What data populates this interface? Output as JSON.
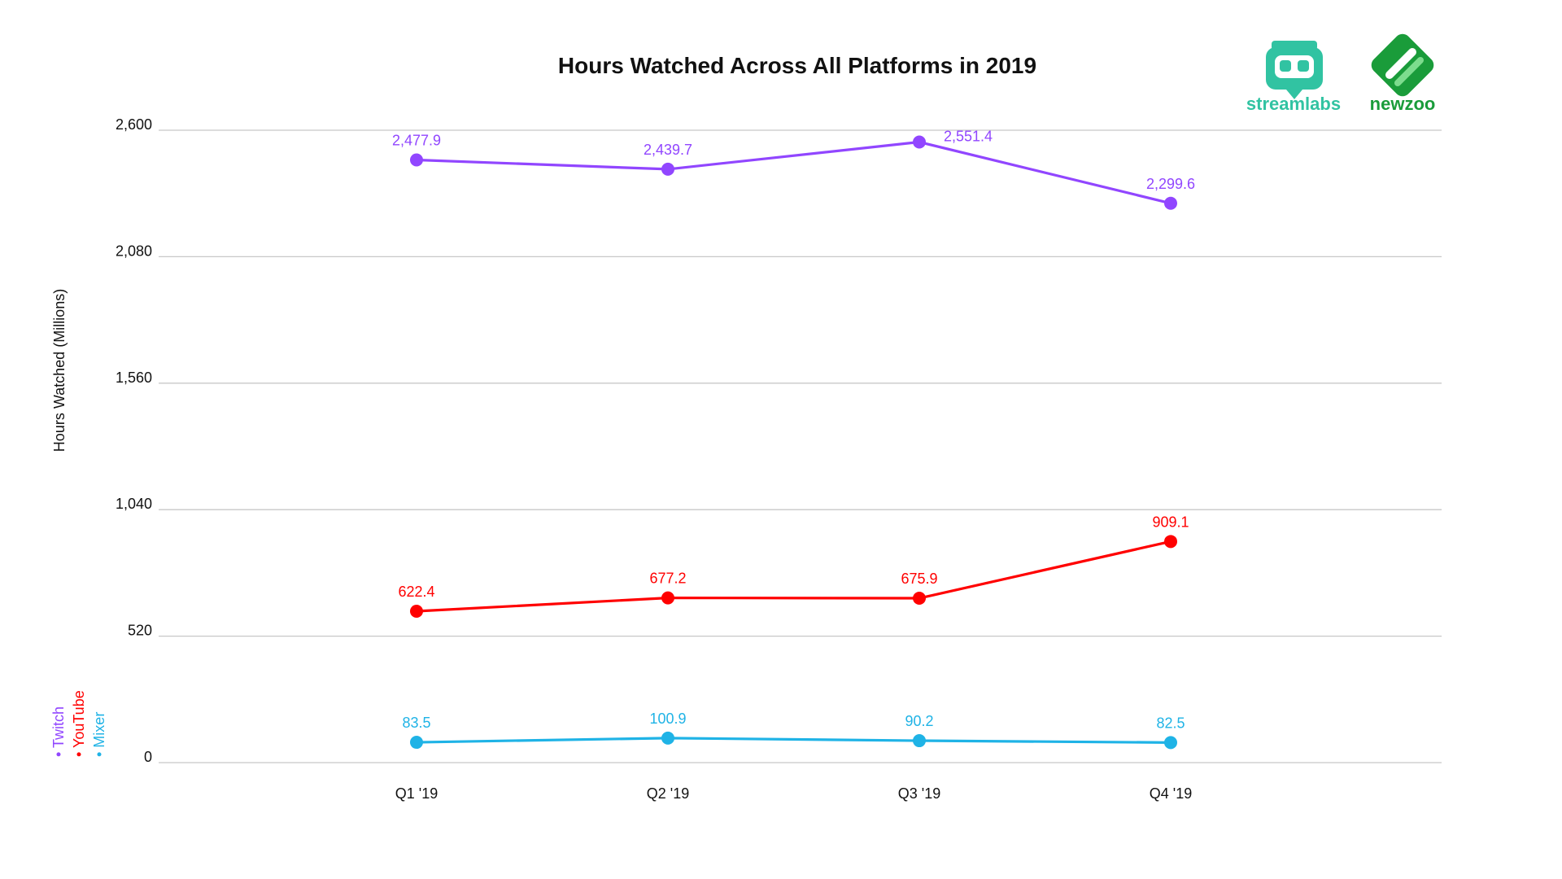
{
  "chart_data": {
    "type": "line",
    "title": "Hours Watched Across All Platforms in 2019",
    "xlabel": "",
    "ylabel": "Hours Watched (Millions)",
    "categories": [
      "Q1 '19",
      "Q2 '19",
      "Q3 '19",
      "Q4 '19"
    ],
    "ylim": [
      0,
      2600
    ],
    "yticks": [
      0,
      520,
      1040,
      1560,
      2080,
      2600
    ],
    "ytick_labels": [
      "0",
      "520",
      "1,040",
      "1,560",
      "2,080",
      "2,600"
    ],
    "grid": "horizontal",
    "legend_position": "left, rotated vertical",
    "series": [
      {
        "name": "Twitch",
        "color": "#9146ff",
        "values": [
          2477.9,
          2439.7,
          2551.4,
          2299.6
        ],
        "labels": [
          "2,477.9",
          "2,439.7",
          "2,551.4",
          "2,299.6"
        ]
      },
      {
        "name": "YouTube",
        "color": "#ff0000",
        "values": [
          622.4,
          677.2,
          675.9,
          909.1
        ],
        "labels": [
          "622.4",
          "677.2",
          "675.9",
          "909.1"
        ]
      },
      {
        "name": "Mixer",
        "color": "#1fb3e6",
        "values": [
          83.5,
          100.9,
          90.2,
          82.5
        ],
        "labels": [
          "83.5",
          "100.9",
          "90.2",
          "82.5"
        ]
      }
    ]
  },
  "logos": {
    "streamlabs": {
      "name": "streamlabs",
      "icon": "streamlabs-robot-icon",
      "color": "#31c3a2"
    },
    "newzoo": {
      "name": "newzoo",
      "icon": "newzoo-leaf-icon",
      "color": "#1a9c3a"
    }
  },
  "legend": {
    "items": [
      {
        "label": "Twitch",
        "color": "#9146ff"
      },
      {
        "label": "YouTube",
        "color": "#ff0000"
      },
      {
        "label": "Mixer",
        "color": "#1fb3e6"
      }
    ]
  }
}
